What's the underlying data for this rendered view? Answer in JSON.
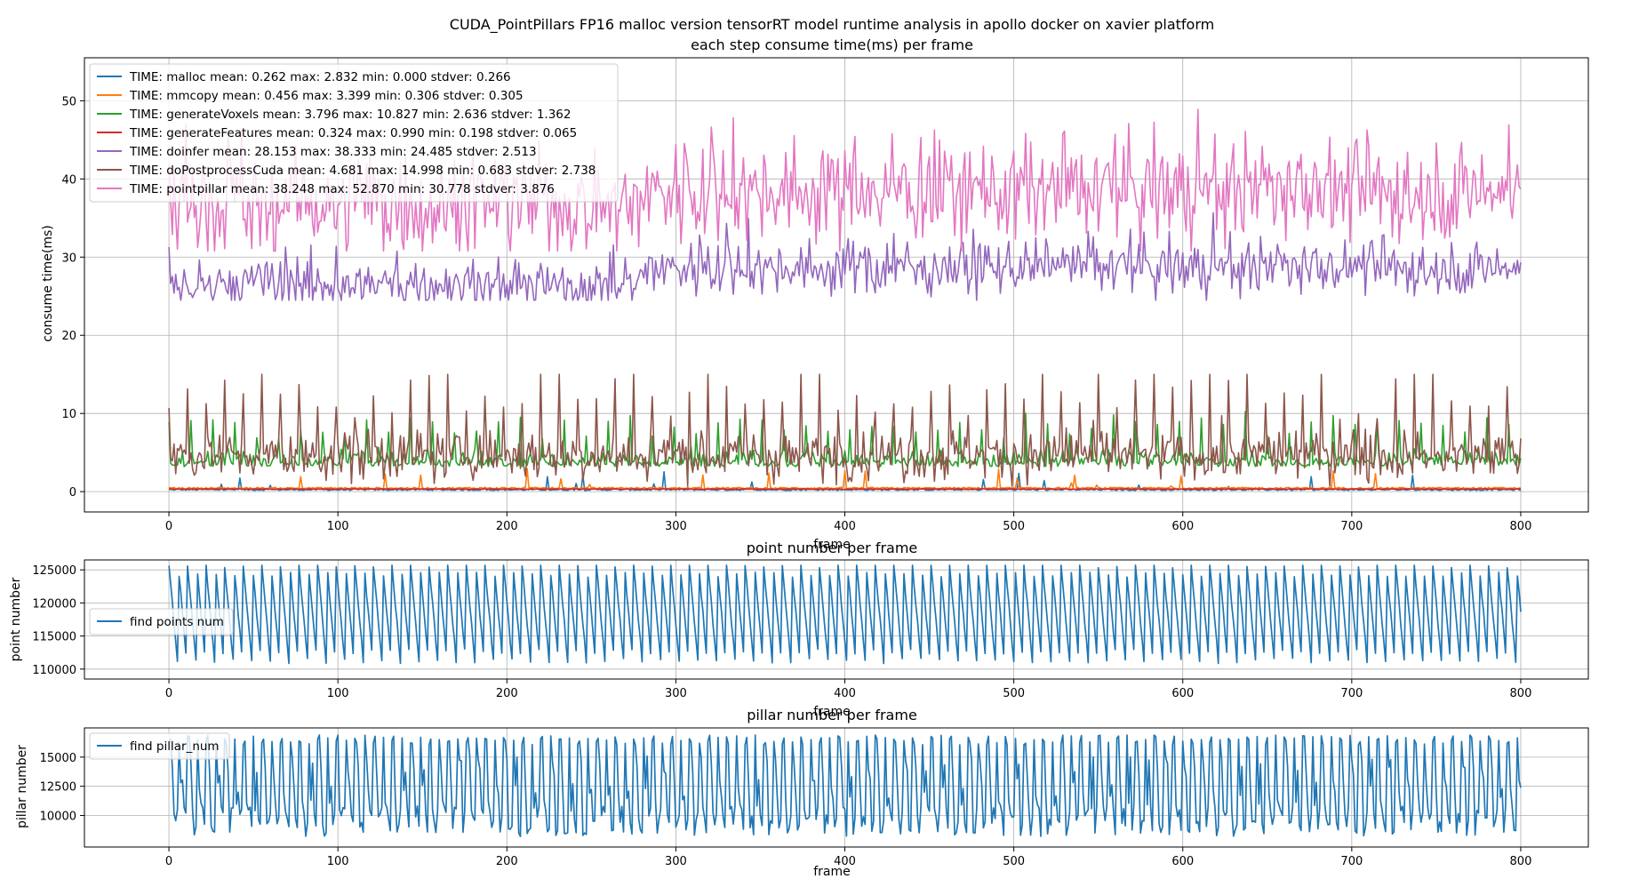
{
  "chart_data": [
    {
      "type": "line",
      "title": "CUDA_PointPillars FP16 malloc  version tensorRT model runtime analysis in apollo docker on xavier platform",
      "subtitle": "each step consume time(ms) per frame",
      "xlabel": "frame",
      "ylabel": "consume time(ms)",
      "xlim": [
        -50,
        840
      ],
      "ylim": [
        -2.6,
        55.5
      ],
      "xticks": [
        0,
        100,
        200,
        300,
        400,
        500,
        600,
        700,
        800
      ],
      "yticks": [
        0,
        10,
        20,
        30,
        40,
        50
      ],
      "grid": true,
      "legend": "upper-left",
      "frames": 800,
      "series": [
        {
          "name": "TIME: malloc mean: 0.262 max: 2.832 min: 0.000 stdver: 0.266",
          "color": "#1f77b4",
          "mean": 0.262,
          "max": 2.832,
          "min": 0.0,
          "stdev": 0.266
        },
        {
          "name": "TIME: mmcopy mean: 0.456 max: 3.399 min: 0.306 stdver: 0.305",
          "color": "#ff7f0e",
          "mean": 0.456,
          "max": 3.399,
          "min": 0.306,
          "stdev": 0.305
        },
        {
          "name": "TIME: generateVoxels mean: 3.796 max: 10.827 min: 2.636 stdver: 1.362",
          "color": "#2ca02c",
          "mean": 3.796,
          "max": 10.827,
          "min": 2.636,
          "stdev": 1.362
        },
        {
          "name": "TIME: generateFeatures mean: 0.324 max: 0.990 min: 0.198 stdver: 0.065",
          "color": "#d62728",
          "mean": 0.324,
          "max": 0.99,
          "min": 0.198,
          "stdev": 0.065
        },
        {
          "name": "TIME: doinfer mean: 28.153 max: 38.333 min: 24.485 stdver: 2.513",
          "color": "#9467bd",
          "mean": 28.153,
          "max": 38.333,
          "min": 24.485,
          "stdev": 2.513
        },
        {
          "name": "TIME: doPostprocessCuda mean: 4.681 max: 14.998 min: 0.683 stdver: 2.738",
          "color": "#8c564b",
          "mean": 4.681,
          "max": 14.998,
          "min": 0.683,
          "stdev": 2.738
        },
        {
          "name": "TIME: pointpillar mean: 38.248 max: 52.870 min: 30.778 stdver: 3.876",
          "color": "#e377c2",
          "mean": 38.248,
          "max": 52.87,
          "min": 30.778,
          "stdev": 3.876
        }
      ]
    },
    {
      "type": "line",
      "title": "point number per frame",
      "xlabel": "frame",
      "ylabel": "point number",
      "xlim": [
        -50,
        840
      ],
      "ylim": [
        108500,
        126500
      ],
      "xticks": [
        0,
        100,
        200,
        300,
        400,
        500,
        600,
        700,
        800
      ],
      "yticks": [
        110000,
        115000,
        120000,
        125000
      ],
      "grid": true,
      "legend": "center-left",
      "series": [
        {
          "name": "find points num",
          "color": "#1f77b4",
          "min": 109800,
          "max": 125700,
          "period_frames": 5.5
        }
      ]
    },
    {
      "type": "line",
      "title": "pillar number per frame",
      "xlabel": "frame",
      "ylabel": "pillar number",
      "xlim": [
        -50,
        840
      ],
      "ylim": [
        7300,
        17500
      ],
      "xticks": [
        0,
        100,
        200,
        300,
        400,
        500,
        600,
        700,
        800
      ],
      "yticks": [
        10000,
        12500,
        15000
      ],
      "grid": true,
      "legend": "upper-left",
      "series": [
        {
          "name": "find pillar_num",
          "color": "#1f77b4",
          "min": 8200,
          "max": 16900,
          "period_frames": 5.5
        }
      ]
    }
  ]
}
